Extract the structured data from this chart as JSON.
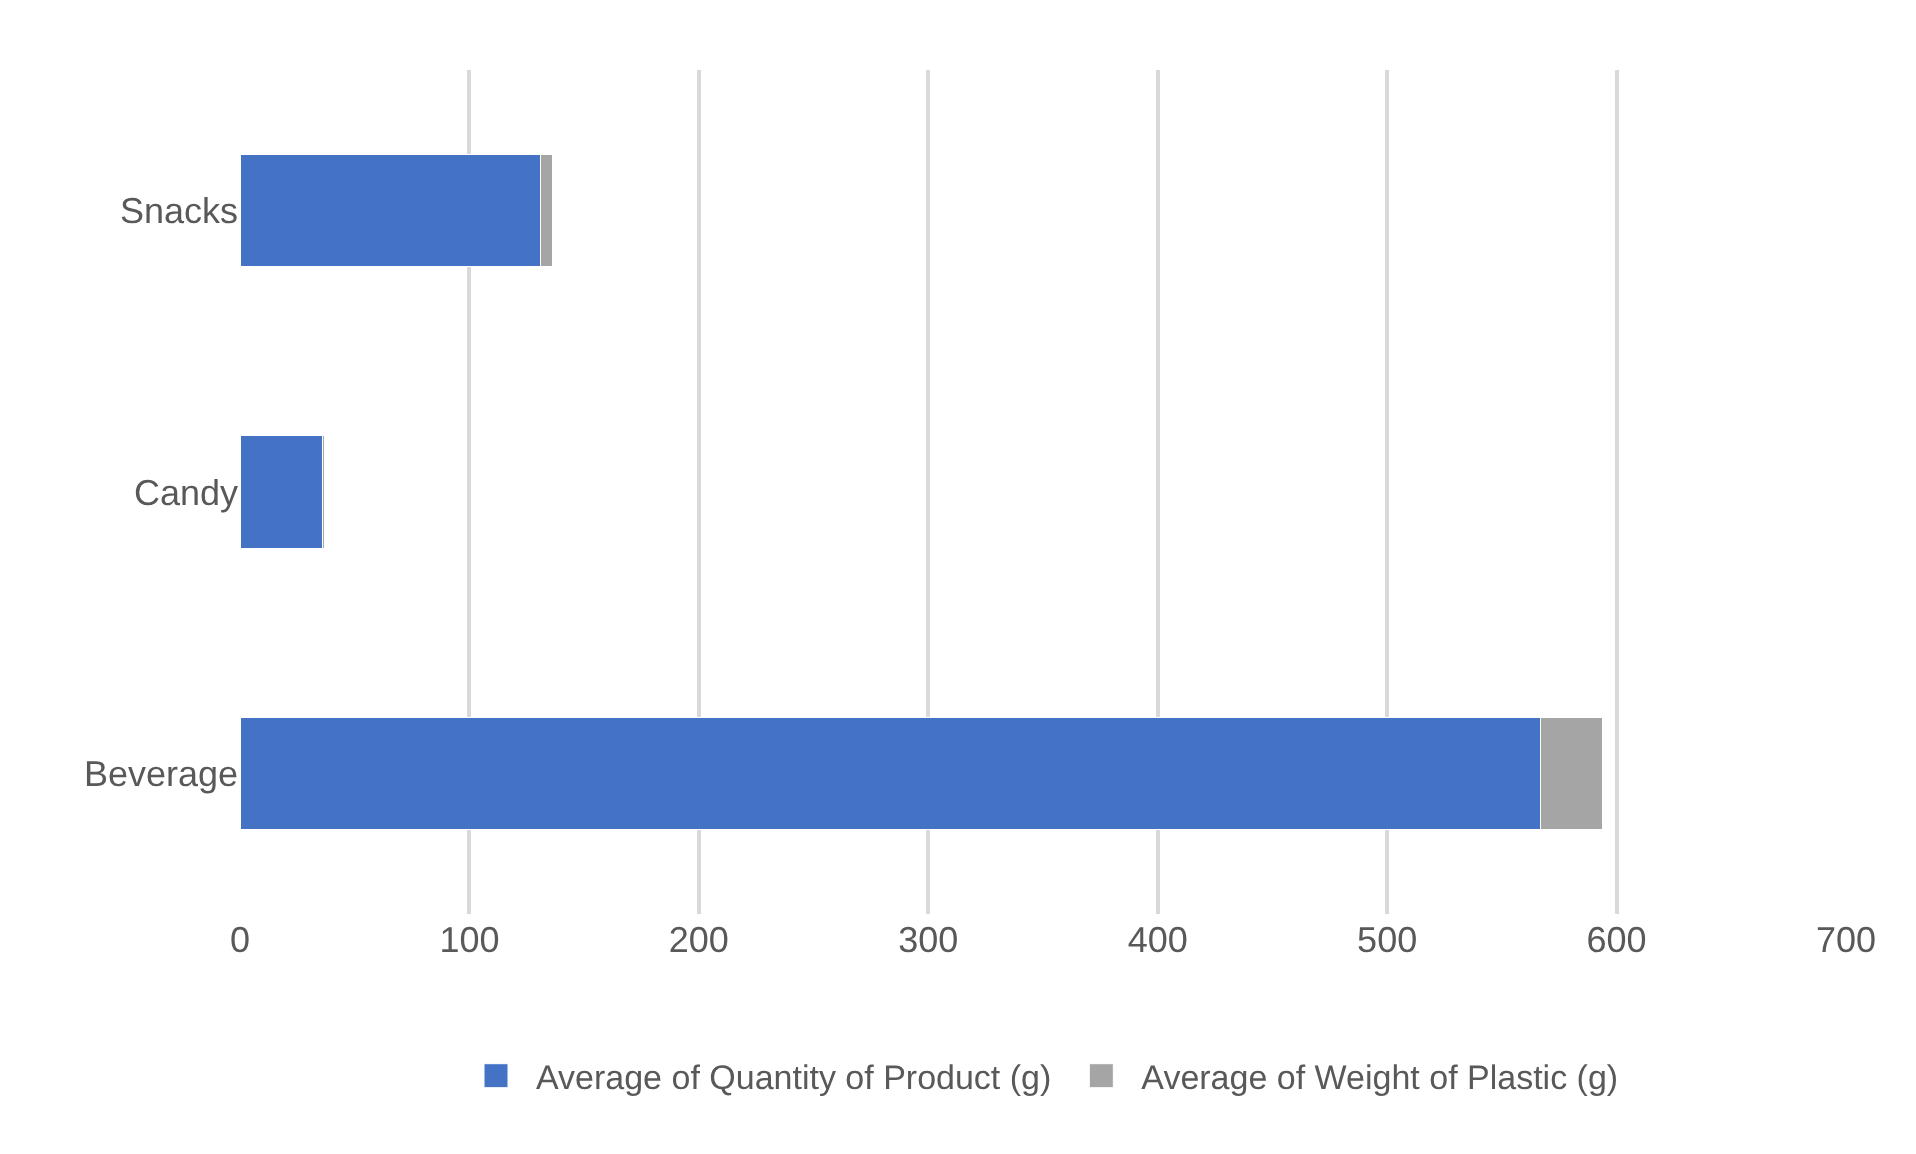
{
  "chart_data": {
    "type": "bar",
    "orientation": "horizontal",
    "stacked": true,
    "categories": [
      "Snacks",
      "Candy",
      "Beverage"
    ],
    "series": [
      {
        "name": "Average of Quantity of Product (g)",
        "color": "#4472c4",
        "values": [
          131,
          36,
          567
        ]
      },
      {
        "name": "Average of Weight of Plastic (g)",
        "color": "#a5a5a5",
        "values": [
          5,
          1,
          27
        ]
      }
    ],
    "xlim": [
      0,
      700
    ],
    "xticks": [
      0,
      100,
      200,
      300,
      400,
      500,
      600,
      700
    ],
    "grid": "x",
    "legend": "bottom"
  }
}
